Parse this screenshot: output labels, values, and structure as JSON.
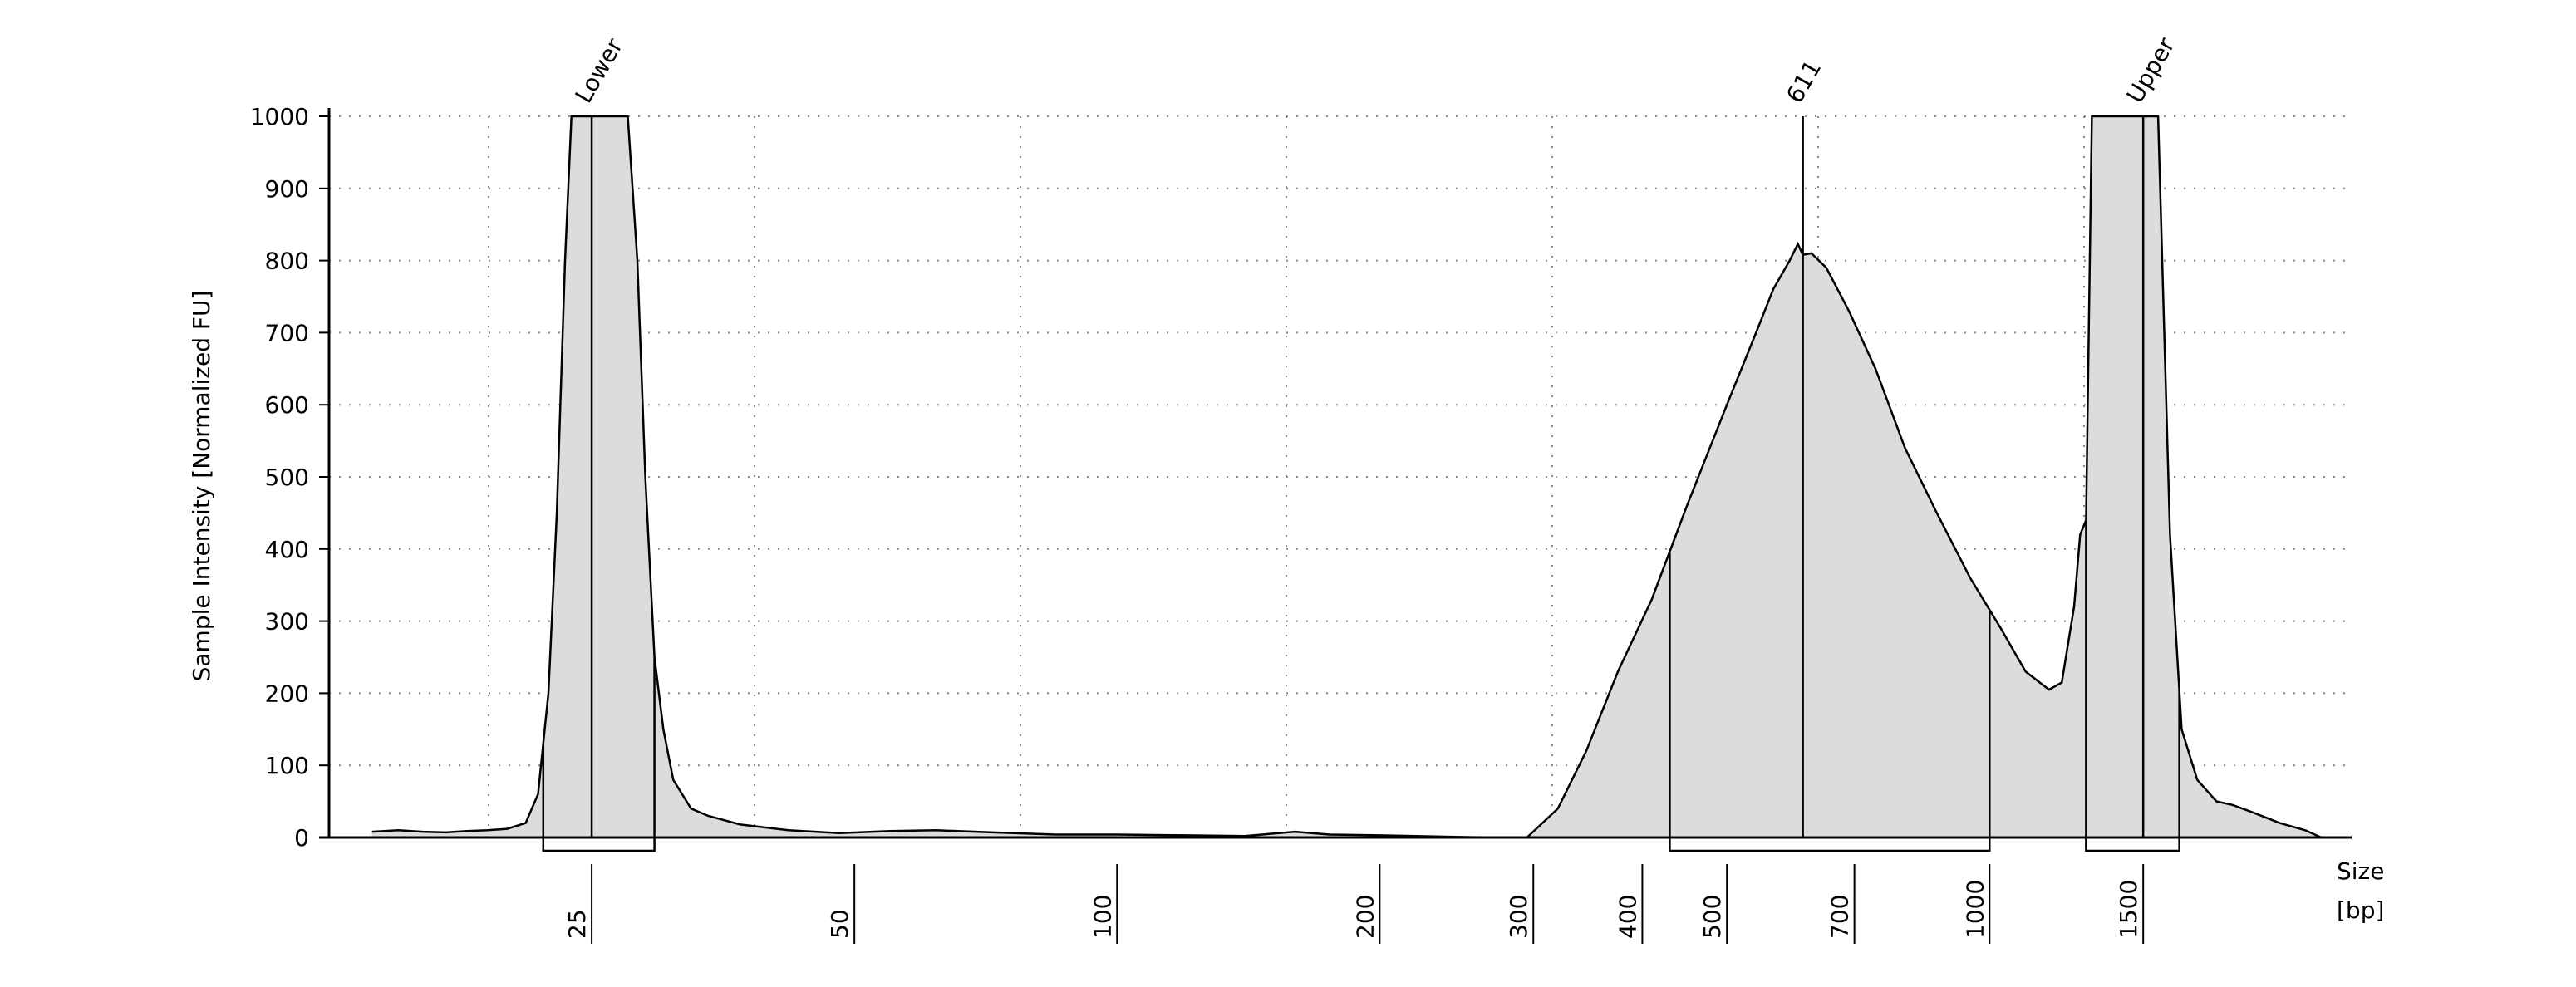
{
  "chart_data": {
    "type": "area",
    "ylabel": "Sample Intensity [Normalized FU]",
    "xlabel_line1": "Size",
    "xlabel_line2": "[bp]",
    "ylim": [
      0,
      1000
    ],
    "y_ticks": [
      0,
      100,
      200,
      300,
      400,
      500,
      600,
      700,
      800,
      900,
      1000
    ],
    "x_scale": "log (electropherogram size axis)",
    "x_ticks": [
      25,
      50,
      100,
      200,
      300,
      400,
      500,
      700,
      1000,
      1500
    ],
    "grid": true,
    "series": [
      {
        "x_units": "bp",
        "points": [
          [
            14,
            8
          ],
          [
            15,
            10
          ],
          [
            16,
            8
          ],
          [
            17,
            7
          ],
          [
            18,
            9
          ],
          [
            19,
            10
          ],
          [
            20,
            12
          ],
          [
            21,
            20
          ],
          [
            21.7,
            60
          ],
          [
            22.3,
            200
          ],
          [
            22.8,
            450
          ],
          [
            23.3,
            800
          ],
          [
            23.7,
            1000
          ],
          [
            27.5,
            1000
          ],
          [
            28.2,
            800
          ],
          [
            28.8,
            500
          ],
          [
            29.5,
            250
          ],
          [
            30.2,
            150
          ],
          [
            31,
            80
          ],
          [
            32.5,
            40
          ],
          [
            34,
            30
          ],
          [
            37,
            18
          ],
          [
            42,
            10
          ],
          [
            48,
            6
          ],
          [
            55,
            9
          ],
          [
            62,
            10
          ],
          [
            72,
            7
          ],
          [
            85,
            4
          ],
          [
            100,
            4
          ],
          [
            120,
            3
          ],
          [
            140,
            2
          ],
          [
            160,
            8
          ],
          [
            175,
            4
          ],
          [
            200,
            3
          ],
          [
            220,
            2
          ],
          [
            240,
            1
          ],
          [
            270,
            0
          ],
          [
            295,
            0
          ],
          [
            320,
            40
          ],
          [
            345,
            120
          ],
          [
            375,
            230
          ],
          [
            410,
            330
          ],
          [
            450,
            460
          ],
          [
            500,
            600
          ],
          [
            540,
            700
          ],
          [
            565,
            760
          ],
          [
            590,
            800
          ],
          [
            603,
            823
          ],
          [
            611,
            808
          ],
          [
            625,
            810
          ],
          [
            650,
            790
          ],
          [
            690,
            730
          ],
          [
            740,
            650
          ],
          [
            800,
            540
          ],
          [
            870,
            450
          ],
          [
            950,
            360
          ],
          [
            1030,
            290
          ],
          [
            1100,
            230
          ],
          [
            1170,
            205
          ],
          [
            1210,
            215
          ],
          [
            1250,
            320
          ],
          [
            1270,
            420
          ],
          [
            1290,
            440
          ],
          [
            1310,
            1000
          ],
          [
            1560,
            1000
          ],
          [
            1610,
            420
          ],
          [
            1660,
            150
          ],
          [
            1730,
            80
          ],
          [
            1820,
            50
          ],
          [
            1900,
            45
          ],
          [
            2000,
            35
          ],
          [
            2150,
            20
          ],
          [
            2300,
            10
          ],
          [
            2400,
            0
          ]
        ]
      }
    ],
    "peak_markers": [
      {
        "label": "Lower",
        "x": 25
      },
      {
        "label": "611",
        "x": 611
      },
      {
        "label": "Upper",
        "x": 1500
      }
    ],
    "regions": [
      {
        "from": 22,
        "to": 29.5
      },
      {
        "from": 430,
        "to": 1000
      },
      {
        "from": 1290,
        "to": 1650
      }
    ]
  }
}
